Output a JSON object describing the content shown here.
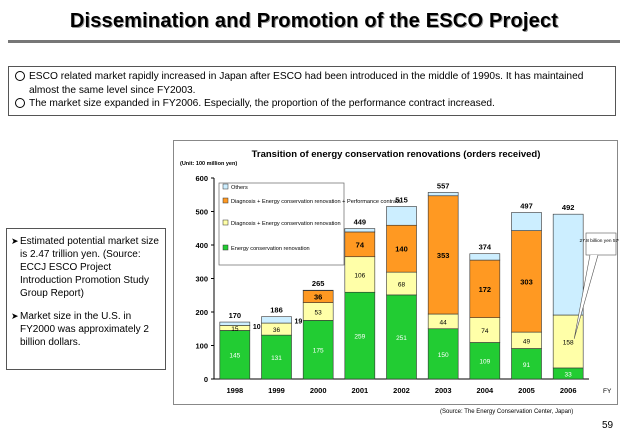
{
  "page": {
    "title": "Dissemination and Promotion of the ESCO Project",
    "bullets": [
      "ESCO related market rapidly increased in Japan after ESCO had been introduced in the middle of 1990s. It has maintained almost the same level since FY2003.",
      "The market size expanded in FY2006. Especially, the proportion of the performance contract increased."
    ],
    "side_notes": [
      "Estimated potential market size is 2.47 trillion yen. (Source: ECCJ ESCO Project Introduction Promotion Study Group Report)",
      "Market size in the U.S. in FY2000 was approximately 2 billion dollars."
    ],
    "source": "(Source: The Energy Conservation Center, Japan)",
    "page_number": "59"
  },
  "chart_data": {
    "type": "bar",
    "stacked": true,
    "title": "Transition of energy conservation renovations (orders received)",
    "unit_label": "(Unit: 100 million yen)",
    "xlabel": "FY",
    "categories": [
      "1998",
      "1999",
      "2000",
      "2001",
      "2002",
      "2003",
      "2004",
      "2005",
      "2006"
    ],
    "ylim": [
      0,
      600
    ],
    "yticks": [
      0,
      100,
      200,
      300,
      400,
      500,
      600
    ],
    "grid": false,
    "legend_position": "top-left",
    "series": [
      {
        "name": "Energy conservation renovation",
        "color": "#22cc33",
        "values": [
          145,
          131,
          175,
          259,
          251,
          150,
          109,
          91,
          33
        ]
      },
      {
        "name": "Diagnosis + Energy conservation renovation",
        "color": "#ffffa8",
        "values": [
          15,
          36,
          53,
          106,
          68,
          44,
          74,
          49,
          158
        ]
      },
      {
        "name": "Diagnosis + Energy conservation renovation + Performance contract",
        "color": "#ff9922",
        "values": [
          null,
          null,
          36,
          74,
          140,
          353,
          172,
          303,
          null
        ]
      },
      {
        "name": "Others",
        "color": "#cceeff",
        "values": [
          null,
          null,
          null,
          null,
          null,
          null,
          null,
          null,
          null
        ]
      }
    ],
    "side_labels": [
      {
        "category": "1998",
        "text": "10"
      },
      {
        "category": "1999",
        "text": "19"
      }
    ],
    "totals": [
      170,
      186,
      265,
      449,
      515,
      557,
      374,
      497,
      492
    ],
    "callout": {
      "category": "2006",
      "text": "27.8 billion yen 57%"
    }
  }
}
